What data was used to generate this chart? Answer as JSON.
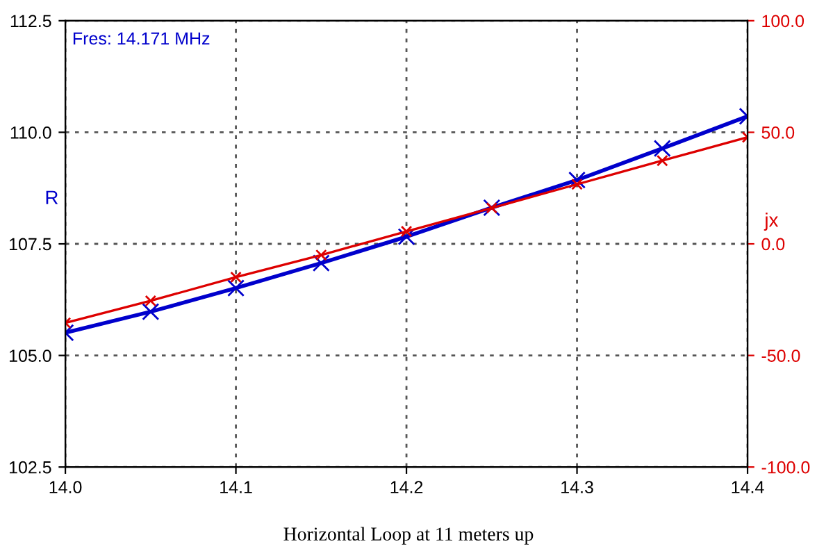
{
  "chart_data": {
    "type": "line",
    "xlabel": null,
    "ylabel": "R",
    "y2label": "jx",
    "x": [
      14.0,
      14.05,
      14.1,
      14.15,
      14.2,
      14.25,
      14.3,
      14.35,
      14.4
    ],
    "series": [
      {
        "color": "#0000cc",
        "values": [
          105.51,
          105.98,
          106.51,
          107.07,
          107.66,
          108.31,
          108.93,
          109.64,
          110.36
        ]
      },
      {
        "color": "#dd0000",
        "axis": "y2",
        "values": [
          -35.4,
          -25.5,
          -14.9,
          -5.0,
          5.6,
          16.1,
          26.7,
          37.3,
          47.8
        ]
      }
    ],
    "xlim": [
      14.0,
      14.4
    ],
    "xticks": [
      {
        "value": 14.0,
        "label": "14.0"
      },
      {
        "value": 14.1,
        "label": "14.1"
      },
      {
        "value": 14.2,
        "label": "14.2"
      },
      {
        "value": 14.3,
        "label": "14.3"
      },
      {
        "value": 14.4,
        "label": "14.4"
      }
    ],
    "ylim": [
      102.5,
      112.5
    ],
    "yticks": [
      {
        "value": 102.5,
        "label": "102.5"
      },
      {
        "value": 105.0,
        "label": "105.0"
      },
      {
        "value": 107.5,
        "label": "107.5"
      },
      {
        "value": 110.0,
        "label": "110.0"
      },
      {
        "value": 112.5,
        "label": "112.5"
      }
    ],
    "y2lim": [
      -100,
      100
    ],
    "y2ticks": [
      {
        "value": -100,
        "label": "-100.0"
      },
      {
        "value": -50,
        "label": "-50.0"
      },
      {
        "value": 0,
        "label": "0.0"
      },
      {
        "value": 50,
        "label": "50.0"
      },
      {
        "value": 100,
        "label": "100.0"
      }
    ],
    "grid": true,
    "marker": "cross",
    "line_style": "solid",
    "annotations": [
      "Fres: 14.171 MHz",
      "Horizontal Loop at 11 meters up"
    ]
  }
}
